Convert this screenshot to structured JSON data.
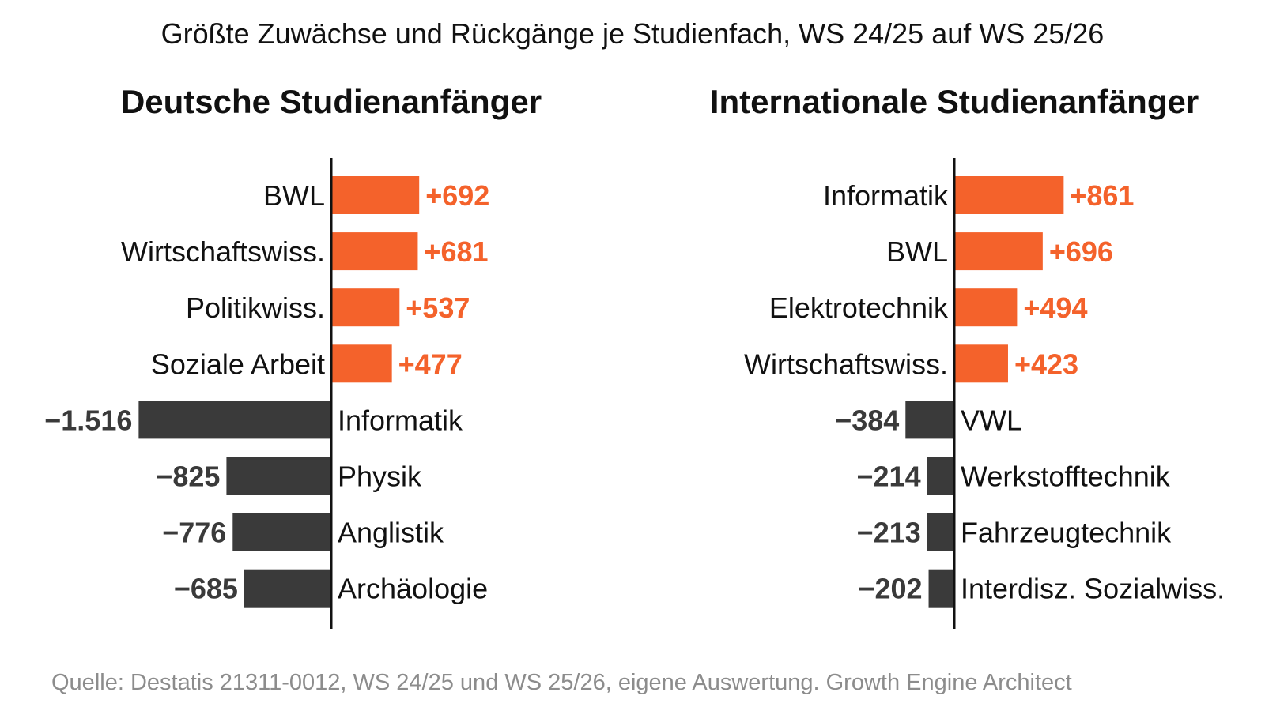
{
  "title": "Größte Zuwächse und Rückgänge je Studienfach, WS 24/25 auf WS 25/26",
  "source": "Quelle: Destatis 21311-0012, WS 24/25 und WS 25/26, eigene Auswertung. Growth Engine Architect",
  "colors": {
    "positive": "#f4622b",
    "negative": "#3a3a3a",
    "axis": "#111111",
    "label": "#111111",
    "source": "#8c8c8c"
  },
  "chart_data": [
    {
      "type": "bar",
      "orientation": "horizontal-diverging",
      "title": "Deutsche Studienanfänger",
      "categories": [
        "BWL",
        "Wirtschaftswiss.",
        "Politikwiss.",
        "Soziale Arbeit",
        "Informatik",
        "Physik",
        "Anglistik",
        "Archäologie"
      ],
      "values": [
        692,
        681,
        537,
        477,
        -1516,
        -825,
        -776,
        -685
      ],
      "value_labels": [
        "+692",
        "+681",
        "+537",
        "+477",
        "−1.516",
        "−825",
        "−776",
        "−685"
      ],
      "grid": false
    },
    {
      "type": "bar",
      "orientation": "horizontal-diverging",
      "title": "Internationale Studienanfänger",
      "categories": [
        "Informatik",
        "BWL",
        "Elektrotechnik",
        "Wirtschaftswiss.",
        "VWL",
        "Werkstofftechnik",
        "Fahrzeugtechnik",
        "Interdisz. Sozialwiss."
      ],
      "values": [
        861,
        696,
        494,
        423,
        -384,
        -214,
        -213,
        -202
      ],
      "value_labels": [
        "+861",
        "+696",
        "+494",
        "+423",
        "−384",
        "−214",
        "−213",
        "−202"
      ],
      "grid": false
    }
  ]
}
